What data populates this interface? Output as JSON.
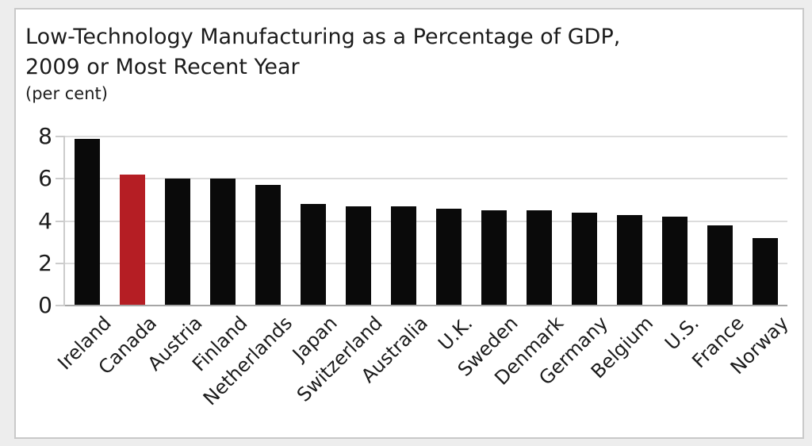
{
  "chart": {
    "title_line1": "Low-Technology Manufacturing as a Percentage of GDP,",
    "title_line2": "2009 or Most Recent Year",
    "unit_label": "(per cent)"
  },
  "colors": {
    "bar": "#0a0a0a",
    "highlight": "#b51e24",
    "gridline": "#dcdcdc",
    "axis": "#a6a6a6",
    "tick": "#cccccc",
    "frame_border": "#c9c9c9",
    "page_background": "#ededed",
    "text": "#1c1c1c"
  },
  "chart_data": {
    "type": "bar",
    "title": "Low-Technology Manufacturing as a Percentage of GDP, 2009 or Most Recent Year",
    "subtitle": "(per cent)",
    "categories": [
      "Ireland",
      "Canada",
      "Austria",
      "Finland",
      "Netherlands",
      "Japan",
      "Switzerland",
      "Australia",
      "U.K.",
      "Sweden",
      "Denmark",
      "Germany",
      "Belgium",
      "U.S.",
      "France",
      "Norway"
    ],
    "values": [
      7.9,
      6.2,
      6.0,
      6.0,
      5.7,
      4.8,
      4.7,
      4.7,
      4.6,
      4.5,
      4.5,
      4.4,
      4.3,
      4.2,
      3.8,
      3.2
    ],
    "highlight_category": "Canada",
    "bar_color": "#0a0a0a",
    "highlight_color": "#b51e24",
    "xlabel": "",
    "ylabel": "",
    "yticks": [
      0,
      2,
      4,
      6,
      8
    ],
    "ylim": [
      0,
      8
    ],
    "grid": "horizontal",
    "legend_position": "none",
    "x_tick_rotation": 45
  }
}
